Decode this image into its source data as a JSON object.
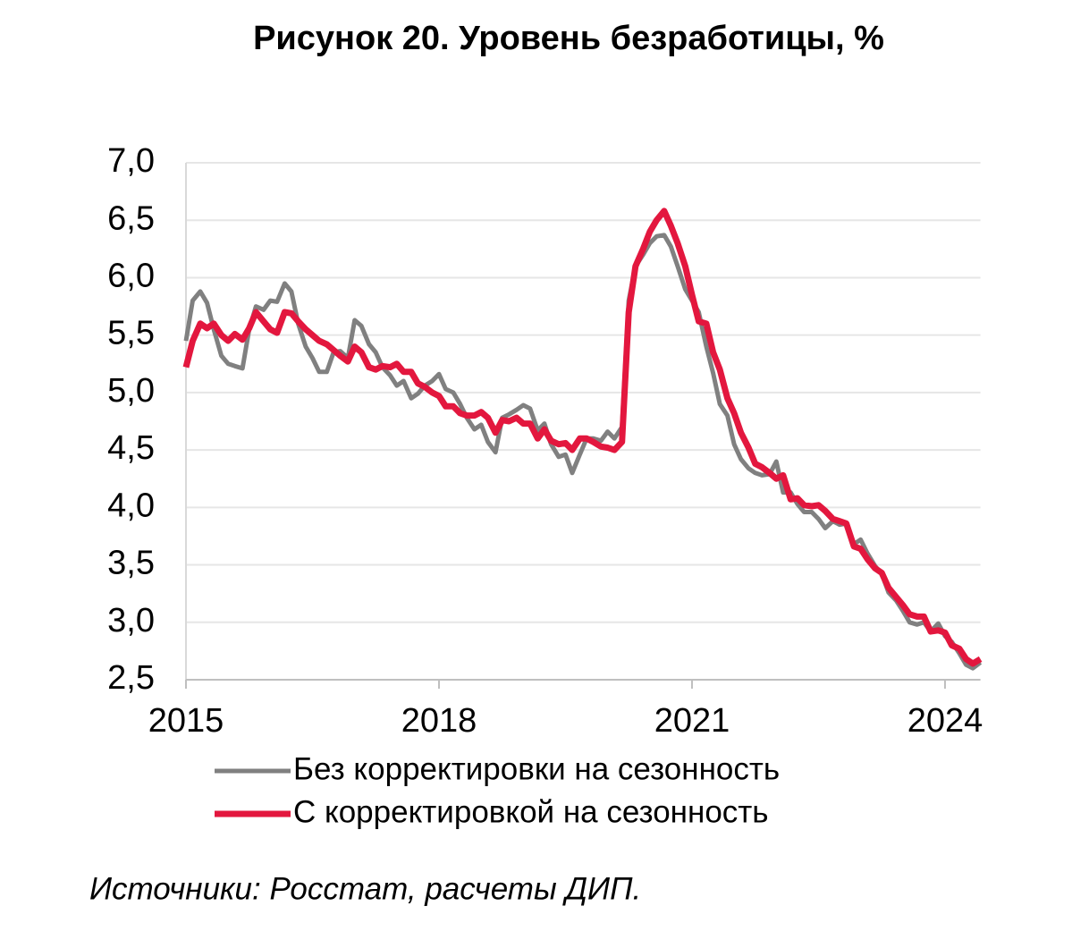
{
  "chart_data": {
    "type": "line",
    "title": "Рисунок 20. Уровень безработицы, %",
    "source": "Источники: Росстат, расчеты ДИП.",
    "x": [
      2015,
      2015.08,
      2015.17,
      2015.25,
      2015.33,
      2015.42,
      2015.5,
      2015.58,
      2015.67,
      2015.75,
      2015.83,
      2015.92,
      2016,
      2016.08,
      2016.17,
      2016.25,
      2016.33,
      2016.42,
      2016.5,
      2016.58,
      2016.67,
      2016.75,
      2016.83,
      2016.92,
      2017,
      2017.08,
      2017.17,
      2017.25,
      2017.33,
      2017.42,
      2017.5,
      2017.58,
      2017.67,
      2017.75,
      2017.83,
      2017.92,
      2018,
      2018.08,
      2018.17,
      2018.25,
      2018.33,
      2018.42,
      2018.5,
      2018.58,
      2018.67,
      2018.75,
      2018.83,
      2018.92,
      2019,
      2019.08,
      2019.17,
      2019.25,
      2019.33,
      2019.42,
      2019.5,
      2019.58,
      2019.67,
      2019.75,
      2019.83,
      2019.92,
      2020,
      2020.08,
      2020.17,
      2020.25,
      2020.33,
      2020.42,
      2020.5,
      2020.58,
      2020.67,
      2020.75,
      2020.83,
      2020.92,
      2021,
      2021.08,
      2021.17,
      2021.25,
      2021.33,
      2021.42,
      2021.5,
      2021.58,
      2021.67,
      2021.75,
      2021.83,
      2021.92,
      2022,
      2022.08,
      2022.17,
      2022.25,
      2022.33,
      2022.42,
      2022.5,
      2022.58,
      2022.67,
      2022.75,
      2022.83,
      2022.92,
      2023,
      2023.08,
      2023.17,
      2023.25,
      2023.33,
      2023.42,
      2023.5,
      2023.58,
      2023.67,
      2023.75,
      2023.83,
      2023.92,
      2024,
      2024.08,
      2024.17,
      2024.25,
      2024.33,
      2024.42
    ],
    "series": [
      {
        "name": "Без корректировки на сезонность",
        "color": "#808080",
        "width": 5,
        "values": [
          5.45,
          5.8,
          5.88,
          5.78,
          5.55,
          5.32,
          5.25,
          5.23,
          5.21,
          5.55,
          5.75,
          5.72,
          5.8,
          5.79,
          5.95,
          5.88,
          5.6,
          5.4,
          5.3,
          5.18,
          5.18,
          5.35,
          5.36,
          5.3,
          5.63,
          5.58,
          5.42,
          5.35,
          5.22,
          5.15,
          5.06,
          5.1,
          4.95,
          4.99,
          5.06,
          5.1,
          5.16,
          5.03,
          5.0,
          4.9,
          4.78,
          4.68,
          4.72,
          4.57,
          4.48,
          4.78,
          4.81,
          4.85,
          4.89,
          4.86,
          4.67,
          4.73,
          4.55,
          4.44,
          4.46,
          4.3,
          4.46,
          4.6,
          4.6,
          4.58,
          4.66,
          4.6,
          4.7,
          5.8,
          6.1,
          6.2,
          6.3,
          6.36,
          6.37,
          6.27,
          6.1,
          5.9,
          5.8,
          5.7,
          5.4,
          5.17,
          4.9,
          4.8,
          4.55,
          4.42,
          4.34,
          4.3,
          4.28,
          4.29,
          4.4,
          4.13,
          4.13,
          4.03,
          3.96,
          3.96,
          3.9,
          3.82,
          3.88,
          3.85,
          3.86,
          3.68,
          3.72,
          3.6,
          3.49,
          3.42,
          3.26,
          3.19,
          3.1,
          3.0,
          2.98,
          3.0,
          2.92,
          2.99,
          2.88,
          2.83,
          2.73,
          2.63,
          2.6,
          2.65
        ]
      },
      {
        "name": "С корректировкой на сезонность",
        "color": "#e3173e",
        "width": 7,
        "values": [
          5.22,
          5.45,
          5.6,
          5.56,
          5.6,
          5.5,
          5.45,
          5.51,
          5.46,
          5.56,
          5.7,
          5.62,
          5.55,
          5.52,
          5.7,
          5.69,
          5.62,
          5.55,
          5.5,
          5.45,
          5.42,
          5.37,
          5.32,
          5.27,
          5.4,
          5.35,
          5.22,
          5.2,
          5.23,
          5.22,
          5.25,
          5.18,
          5.18,
          5.08,
          5.05,
          5.0,
          4.97,
          4.88,
          4.88,
          4.82,
          4.8,
          4.8,
          4.83,
          4.78,
          4.65,
          4.76,
          4.75,
          4.78,
          4.73,
          4.73,
          4.6,
          4.68,
          4.58,
          4.55,
          4.56,
          4.5,
          4.6,
          4.6,
          4.57,
          4.53,
          4.52,
          4.5,
          4.57,
          5.7,
          6.1,
          6.25,
          6.4,
          6.5,
          6.58,
          6.45,
          6.3,
          6.1,
          5.85,
          5.62,
          5.6,
          5.35,
          5.2,
          4.95,
          4.82,
          4.65,
          4.52,
          4.38,
          4.35,
          4.3,
          4.25,
          4.28,
          4.07,
          4.08,
          4.02,
          4.01,
          4.02,
          3.97,
          3.9,
          3.88,
          3.86,
          3.66,
          3.64,
          3.55,
          3.47,
          3.43,
          3.3,
          3.22,
          3.15,
          3.07,
          3.05,
          3.05,
          2.92,
          2.93,
          2.91,
          2.8,
          2.77,
          2.68,
          2.64,
          2.68
        ]
      }
    ],
    "xlim": [
      2015,
      2024.42
    ],
    "xticks": [
      2015,
      2018,
      2021,
      2024
    ],
    "ylim": [
      2.5,
      7
    ],
    "yticks": [
      {
        "value": 2.5,
        "label": "2,5"
      },
      {
        "value": 3,
        "label": "3,0"
      },
      {
        "value": 3.5,
        "label": "3,5"
      },
      {
        "value": 4,
        "label": "4,0"
      },
      {
        "value": 4.5,
        "label": "4,5"
      },
      {
        "value": 5,
        "label": "5,0"
      },
      {
        "value": 5.5,
        "label": "5,5"
      },
      {
        "value": 6,
        "label": "6,0"
      },
      {
        "value": 6.5,
        "label": "6,5"
      },
      {
        "value": 7,
        "label": "7,0"
      }
    ],
    "grid": true
  }
}
